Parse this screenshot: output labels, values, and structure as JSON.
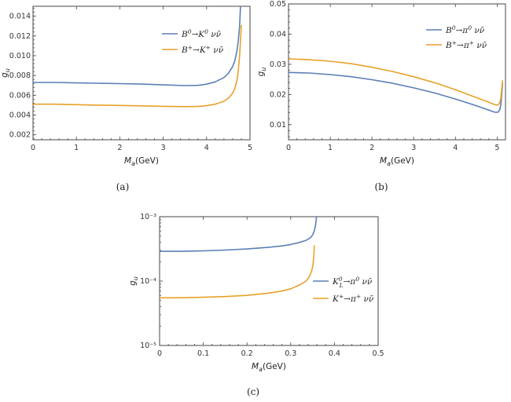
{
  "chart_data": [
    {
      "type": "line",
      "caption": "(a)",
      "xlabel": "M_a(GeV)",
      "ylabel": "g_u",
      "xlim": [
        0,
        5
      ],
      "ylim": [
        0.0015,
        0.015
      ],
      "xticks": [
        "0",
        "1",
        "2",
        "3",
        "4",
        "5"
      ],
      "yticks": [
        "0.002",
        "0.004",
        "0.006",
        "0.008",
        "0.010",
        "0.012",
        "0.014"
      ],
      "legend_position": "top-right",
      "series": [
        {
          "name": "B⁰→K⁰ νν̄",
          "color": "#5b7fb5",
          "x": [
            0,
            0.5,
            1,
            1.5,
            2,
            2.5,
            3,
            3.5,
            3.8,
            4.0,
            4.2,
            4.4,
            4.5,
            4.6,
            4.65,
            4.7,
            4.73,
            4.76,
            4.78
          ],
          "y": [
            0.0073,
            0.0073,
            0.00725,
            0.00722,
            0.00718,
            0.00713,
            0.00705,
            0.00698,
            0.007,
            0.00712,
            0.00735,
            0.0078,
            0.0082,
            0.0089,
            0.0095,
            0.0105,
            0.0115,
            0.013,
            0.015
          ]
        },
        {
          "name": "B⁺→K⁺ νν̄",
          "color": "#e8a128",
          "x": [
            0,
            0.5,
            1,
            1.5,
            2,
            2.5,
            3,
            3.5,
            3.8,
            4.0,
            4.2,
            4.4,
            4.5,
            4.6,
            4.65,
            4.7,
            4.73,
            4.76,
            4.78,
            4.8
          ],
          "y": [
            0.0051,
            0.0051,
            0.00505,
            0.005,
            0.00497,
            0.00493,
            0.00488,
            0.00485,
            0.00487,
            0.00495,
            0.0051,
            0.0054,
            0.0057,
            0.0062,
            0.0067,
            0.0075,
            0.0085,
            0.01,
            0.0115,
            0.0131
          ]
        }
      ]
    },
    {
      "type": "line",
      "caption": "(b)",
      "xlabel": "M_a(GeV)",
      "ylabel": "g_u",
      "xlim": [
        0,
        5.2
      ],
      "ylim": [
        0.005,
        0.05
      ],
      "xticks": [
        "0",
        "1",
        "2",
        "3",
        "4",
        "5"
      ],
      "yticks": [
        "0.01",
        "0.02",
        "0.03",
        "0.04",
        "0.05"
      ],
      "legend_position": "top-right",
      "series": [
        {
          "name": "B⁰→π⁰ νν̄",
          "color": "#5b7fb5",
          "x": [
            0,
            0.5,
            1,
            1.5,
            2,
            2.5,
            3,
            3.5,
            4,
            4.5,
            4.8,
            4.95,
            5.02,
            5.06,
            5.09,
            5.11,
            5.13
          ],
          "y": [
            0.0273,
            0.0271,
            0.0266,
            0.0259,
            0.0249,
            0.0237,
            0.0222,
            0.0205,
            0.0185,
            0.0163,
            0.0148,
            0.0141,
            0.0141,
            0.0149,
            0.0168,
            0.02,
            0.0238
          ]
        },
        {
          "name": "B⁺→π⁺ νν̄",
          "color": "#e8a128",
          "x": [
            0,
            0.5,
            1,
            1.5,
            2,
            2.5,
            3,
            3.5,
            4,
            4.5,
            4.8,
            4.95,
            5.02,
            5.06,
            5.09,
            5.11,
            5.13
          ],
          "y": [
            0.0318,
            0.0315,
            0.031,
            0.0302,
            0.029,
            0.0276,
            0.0259,
            0.0239,
            0.0216,
            0.019,
            0.0174,
            0.0166,
            0.0165,
            0.0172,
            0.019,
            0.0218,
            0.0247
          ]
        }
      ]
    },
    {
      "type": "line",
      "caption": "(c)",
      "xlabel": "M_a(GeV)",
      "ylabel": "g_u",
      "xlim": [
        0,
        0.5
      ],
      "ylim": [
        1e-05,
        0.001
      ],
      "yscale": "log",
      "xticks": [
        "0",
        "0.1",
        "0.2",
        "0.3",
        "0.4",
        "0.5"
      ],
      "yticks": [
        "10⁻⁵",
        "10⁻⁴",
        "10⁻³"
      ],
      "legend_position": "center-right",
      "series": [
        {
          "name": "K⁰L→π⁰ νν̄",
          "color": "#5b7fb5",
          "x": [
            0,
            0.05,
            0.1,
            0.15,
            0.2,
            0.25,
            0.28,
            0.3,
            0.32,
            0.335,
            0.345,
            0.35,
            0.354,
            0.357,
            0.359
          ],
          "y": [
            0.00029,
            0.00029,
            0.000295,
            0.000303,
            0.000315,
            0.000335,
            0.000352,
            0.00037,
            0.000398,
            0.00043,
            0.00047,
            0.00052,
            0.0006,
            0.00075,
            0.001
          ]
        },
        {
          "name": "K⁺→π⁺ νν̄",
          "color": "#e8a128",
          "x": [
            0,
            0.05,
            0.1,
            0.15,
            0.2,
            0.25,
            0.28,
            0.3,
            0.32,
            0.335,
            0.343,
            0.348,
            0.351,
            0.353,
            0.354
          ],
          "y": [
            5.5e-05,
            5.52e-05,
            5.6e-05,
            5.75e-05,
            6e-05,
            6.5e-05,
            7e-05,
            7.6e-05,
            8.7e-05,
            0.0001,
            0.000118,
            0.000145,
            0.00018,
            0.00026,
            0.00036
          ]
        }
      ]
    }
  ]
}
